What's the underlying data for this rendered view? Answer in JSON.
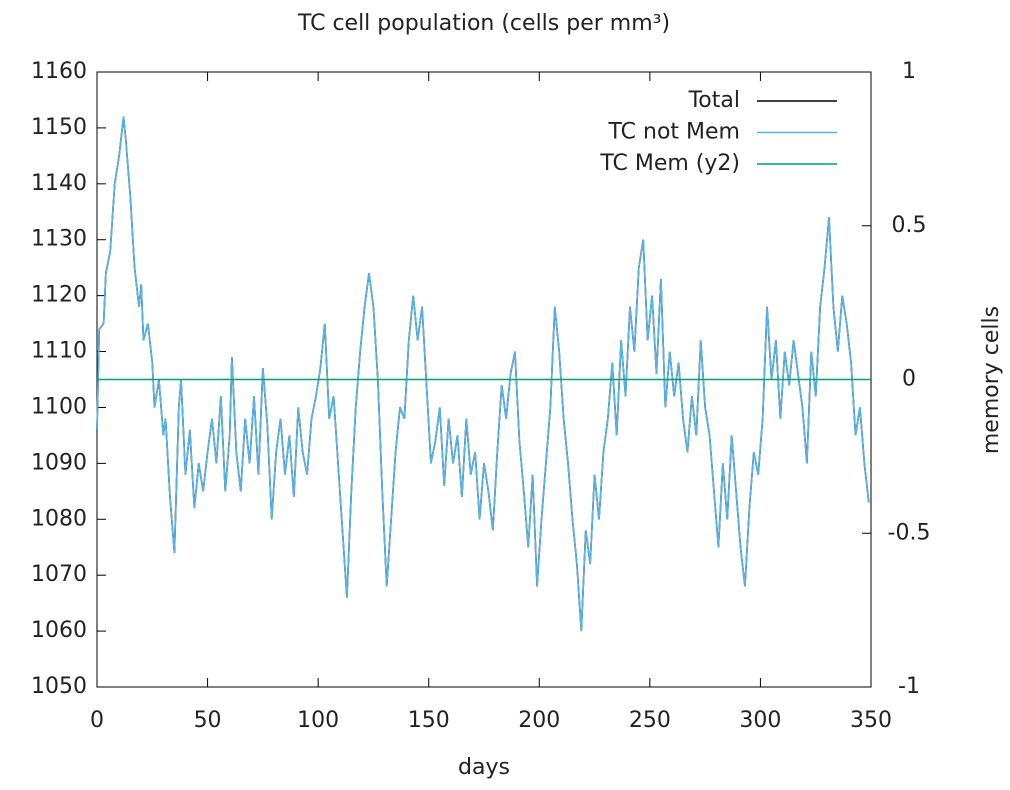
{
  "chart_data": {
    "type": "line",
    "title": "TC cell population (cells per mm³)",
    "xlabel": "days",
    "y2label": "memory cells",
    "xlim": [
      0,
      350
    ],
    "xticks": [
      0,
      50,
      100,
      150,
      200,
      250,
      300,
      350
    ],
    "ylim": [
      1050,
      1160
    ],
    "yticks": [
      1050,
      1060,
      1070,
      1080,
      1090,
      1100,
      1110,
      1120,
      1130,
      1140,
      1150,
      1160
    ],
    "y2lim": [
      -1,
      1
    ],
    "y2ticks": [
      -1,
      -0.5,
      0,
      0.5,
      1
    ],
    "legend": "top-right",
    "x": [
      0,
      1,
      3,
      4,
      6,
      8,
      10,
      12,
      13,
      15,
      17,
      19,
      20,
      21,
      23,
      25,
      26,
      28,
      30,
      31,
      33,
      35,
      37,
      38,
      40,
      42,
      44,
      46,
      48,
      50,
      52,
      54,
      56,
      58,
      60,
      61,
      63,
      65,
      67,
      69,
      71,
      73,
      75,
      77,
      79,
      81,
      83,
      85,
      87,
      89,
      91,
      93,
      95,
      97,
      99,
      101,
      103,
      105,
      107,
      109,
      111,
      113,
      115,
      117,
      119,
      121,
      123,
      125,
      127,
      129,
      131,
      133,
      135,
      137,
      139,
      141,
      143,
      145,
      147,
      149,
      151,
      153,
      155,
      157,
      159,
      161,
      163,
      165,
      167,
      169,
      171,
      173,
      175,
      177,
      179,
      181,
      183,
      185,
      187,
      189,
      191,
      193,
      195,
      197,
      199,
      201,
      203,
      205,
      207,
      209,
      211,
      213,
      215,
      217,
      219,
      221,
      223,
      225,
      227,
      229,
      231,
      233,
      235,
      237,
      239,
      241,
      243,
      245,
      247,
      249,
      251,
      253,
      255,
      257,
      259,
      261,
      263,
      265,
      267,
      269,
      271,
      273,
      275,
      277,
      279,
      281,
      283,
      285,
      287,
      289,
      291,
      293,
      295,
      297,
      299,
      301,
      303,
      305,
      307,
      309,
      311,
      313,
      315,
      317,
      319,
      321,
      323,
      325,
      327,
      329,
      331,
      333,
      335,
      337,
      339,
      341,
      343,
      345,
      347,
      349
    ],
    "series": [
      {
        "name": "Total",
        "color": "#000000",
        "values": [
          1096,
          1114,
          1115,
          1124,
          1128,
          1140,
          1145,
          1152,
          1148,
          1138,
          1125,
          1118,
          1122,
          1112,
          1115,
          1108,
          1100,
          1105,
          1095,
          1098,
          1084,
          1074,
          1100,
          1105,
          1088,
          1096,
          1082,
          1090,
          1085,
          1092,
          1098,
          1090,
          1102,
          1085,
          1095,
          1109,
          1092,
          1085,
          1098,
          1090,
          1102,
          1088,
          1107,
          1097,
          1080,
          1092,
          1098,
          1088,
          1095,
          1084,
          1100,
          1092,
          1088,
          1098,
          1102,
          1107,
          1115,
          1098,
          1102,
          1090,
          1078,
          1066,
          1085,
          1100,
          1110,
          1118,
          1124,
          1118,
          1105,
          1085,
          1068,
          1080,
          1092,
          1100,
          1098,
          1112,
          1120,
          1112,
          1118,
          1104,
          1090,
          1094,
          1100,
          1086,
          1098,
          1090,
          1095,
          1084,
          1098,
          1088,
          1092,
          1080,
          1090,
          1085,
          1078,
          1092,
          1104,
          1098,
          1106,
          1110,
          1094,
          1085,
          1075,
          1088,
          1068,
          1080,
          1090,
          1100,
          1118,
          1110,
          1098,
          1090,
          1080,
          1072,
          1060,
          1078,
          1072,
          1088,
          1080,
          1092,
          1098,
          1108,
          1095,
          1112,
          1102,
          1118,
          1110,
          1125,
          1130,
          1112,
          1120,
          1106,
          1123,
          1100,
          1110,
          1102,
          1108,
          1098,
          1092,
          1102,
          1095,
          1112,
          1100,
          1095,
          1085,
          1075,
          1090,
          1080,
          1095,
          1085,
          1075,
          1068,
          1082,
          1092,
          1088,
          1098,
          1118,
          1105,
          1112,
          1098,
          1110,
          1104,
          1112,
          1106,
          1100,
          1090,
          1110,
          1102,
          1118,
          1125,
          1134,
          1118,
          1110,
          1120,
          1115,
          1108,
          1095,
          1100,
          1090,
          1083
        ]
      },
      {
        "name": "TC not Mem",
        "color": "#56b4e9",
        "values": [
          1096,
          1114,
          1115,
          1124,
          1128,
          1140,
          1145,
          1152,
          1148,
          1138,
          1125,
          1118,
          1122,
          1112,
          1115,
          1108,
          1100,
          1105,
          1095,
          1098,
          1084,
          1074,
          1100,
          1105,
          1088,
          1096,
          1082,
          1090,
          1085,
          1092,
          1098,
          1090,
          1102,
          1085,
          1095,
          1109,
          1092,
          1085,
          1098,
          1090,
          1102,
          1088,
          1107,
          1097,
          1080,
          1092,
          1098,
          1088,
          1095,
          1084,
          1100,
          1092,
          1088,
          1098,
          1102,
          1107,
          1115,
          1098,
          1102,
          1090,
          1078,
          1066,
          1085,
          1100,
          1110,
          1118,
          1124,
          1118,
          1105,
          1085,
          1068,
          1080,
          1092,
          1100,
          1098,
          1112,
          1120,
          1112,
          1118,
          1104,
          1090,
          1094,
          1100,
          1086,
          1098,
          1090,
          1095,
          1084,
          1098,
          1088,
          1092,
          1080,
          1090,
          1085,
          1078,
          1092,
          1104,
          1098,
          1106,
          1110,
          1094,
          1085,
          1075,
          1088,
          1068,
          1080,
          1090,
          1100,
          1118,
          1110,
          1098,
          1090,
          1080,
          1072,
          1060,
          1078,
          1072,
          1088,
          1080,
          1092,
          1098,
          1108,
          1095,
          1112,
          1102,
          1118,
          1110,
          1125,
          1130,
          1112,
          1120,
          1106,
          1123,
          1100,
          1110,
          1102,
          1108,
          1098,
          1092,
          1102,
          1095,
          1112,
          1100,
          1095,
          1085,
          1075,
          1090,
          1080,
          1095,
          1085,
          1075,
          1068,
          1082,
          1092,
          1088,
          1098,
          1118,
          1105,
          1112,
          1098,
          1110,
          1104,
          1112,
          1106,
          1100,
          1090,
          1110,
          1102,
          1118,
          1125,
          1134,
          1118,
          1110,
          1120,
          1115,
          1108,
          1095,
          1100,
          1090,
          1083
        ]
      },
      {
        "name": "TC Mem (y2)",
        "color": "#009e73",
        "axis": "y2",
        "x": [
          0,
          350
        ],
        "values": [
          0,
          0
        ]
      }
    ]
  }
}
